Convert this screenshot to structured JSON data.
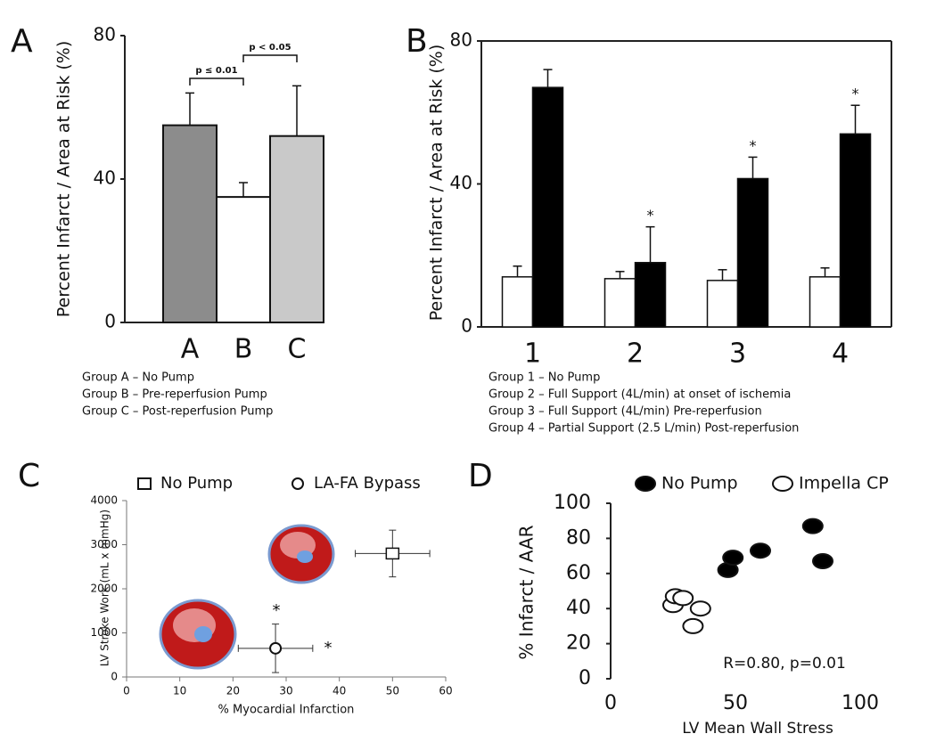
{
  "chart_data": [
    {
      "type": "bar",
      "panel_label": "A",
      "y_label": "Percent Infarct / Area at Risk (%)",
      "categories": [
        "A",
        "B",
        "C"
      ],
      "values": [
        55,
        35,
        52
      ],
      "errors": [
        9,
        4,
        14
      ],
      "colors": [
        "#8c8c8c",
        "#ffffff",
        "#c9c9c9"
      ],
      "ylim": [
        0,
        80
      ],
      "yticks": [
        0,
        40,
        80
      ],
      "grid": false,
      "annotations": [
        "p ≤ 0.01",
        "p < 0.05"
      ],
      "notes": [
        "Group A – No Pump",
        "Group B – Pre-reperfusion Pump",
        "Group C – Post-reperfusion Pump"
      ]
    },
    {
      "type": "bar",
      "panel_label": "B",
      "y_label": "Percent Infarct / Area at Risk (%)",
      "categories": [
        "1",
        "2",
        "3",
        "4"
      ],
      "series": [
        {
          "color": "#ffffff",
          "values": [
            14,
            13.5,
            13,
            14
          ],
          "errors": [
            3,
            2,
            3,
            2.5
          ]
        },
        {
          "color": "#000000",
          "values": [
            67,
            18,
            41.5,
            54
          ],
          "errors": [
            5,
            10,
            6,
            8
          ],
          "markers": [
            null,
            "*",
            "*",
            "*"
          ]
        }
      ],
      "ylim": [
        0,
        80
      ],
      "yticks": [
        0,
        40,
        80
      ],
      "grid": false,
      "notes": [
        "Group 1 – No Pump",
        "Group 2 – Full Support  (4L/min) at onset of ischemia",
        "Group 3 – Full Support (4L/min) Pre-reperfusion",
        "Group 4 – Partial Support (2.5 L/min) Post-reperfusion"
      ]
    },
    {
      "type": "scatter",
      "panel_label": "C",
      "x_label": "% Myocardial Infarction",
      "y_label": "LV Stroke Work (mL x mmHg)",
      "series": [
        {
          "name": "No Pump",
          "marker": "square",
          "color": "#ffffff",
          "x": [
            50
          ],
          "y": [
            2800
          ],
          "xerr": [
            7
          ],
          "yerr": [
            530
          ]
        },
        {
          "name": "LA-FA Bypass",
          "marker": "circle",
          "color": "#ffffff",
          "x": [
            28
          ],
          "y": [
            650
          ],
          "xerr": [
            7
          ],
          "yerr": [
            550
          ]
        }
      ],
      "xlim": [
        0,
        60
      ],
      "xticks": [
        0,
        10,
        20,
        30,
        40,
        50,
        60
      ],
      "ylim": [
        0,
        4000
      ],
      "yticks": [
        0,
        1000,
        2000,
        3000,
        4000
      ],
      "grid": false,
      "annotations": [
        "*",
        "*"
      ]
    },
    {
      "type": "scatter",
      "panel_label": "D",
      "x_label": "LV Mean Wall Stress",
      "y_label": "% Infarct / AAR",
      "series": [
        {
          "name": "No Pump",
          "marker": "circle",
          "color": "#000000",
          "x": [
            47,
            49,
            60,
            81,
            85
          ],
          "y": [
            62,
            69,
            73,
            87,
            67
          ]
        },
        {
          "name": "Impella CP",
          "marker": "circle",
          "color": "#ffffff",
          "x": [
            25,
            26,
            29,
            36,
            33
          ],
          "y": [
            42,
            47,
            46,
            40,
            30
          ]
        }
      ],
      "xlim": [
        0,
        100
      ],
      "xticks": [
        0,
        50,
        100
      ],
      "ylim": [
        0,
        100
      ],
      "yticks": [
        0,
        20,
        40,
        60,
        80,
        100
      ],
      "grid": false,
      "annotations": [
        "R=0.80, p=0.01"
      ]
    }
  ]
}
